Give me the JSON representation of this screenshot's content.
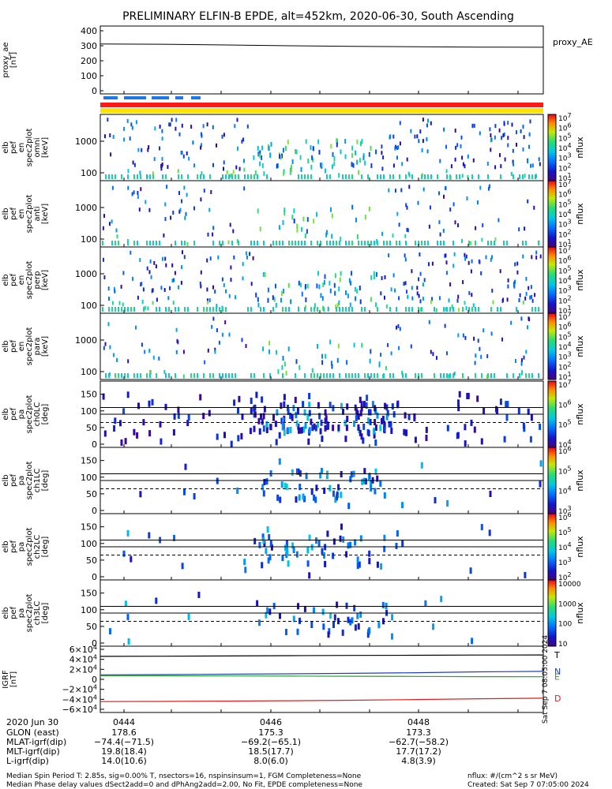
{
  "title": "PRELIMINARY ELFIN-B EPDE, alt=452km, 2020-06-30, South Ascending",
  "proxy_panel": {
    "ylabel_lines": [
      "proxy_ae",
      "[nT]"
    ],
    "yticks": [
      "400",
      "300",
      "200",
      "100",
      "0"
    ],
    "legend": "proxy_AE"
  },
  "spectra_panels": [
    {
      "ylabel_lines": [
        "elb",
        "pef",
        "en",
        "spec2plot",
        "omni",
        "[keV]"
      ],
      "yticks": [
        "1000",
        "100"
      ],
      "zticks": [
        "10^7",
        "10^6",
        "10^5",
        "10^4",
        "10^3",
        "10^2",
        "10^1"
      ],
      "zunit": "nflux"
    },
    {
      "ylabel_lines": [
        "elb",
        "pef",
        "en",
        "spec2plot",
        "anti",
        "[keV]"
      ],
      "yticks": [
        "1000",
        "100"
      ],
      "zticks": [
        "10^7",
        "10^6",
        "10^5",
        "10^4",
        "10^3",
        "10^2",
        "10^1"
      ],
      "zunit": "nflux"
    },
    {
      "ylabel_lines": [
        "elb",
        "pef",
        "en",
        "spec2plot",
        "perp",
        "[keV]"
      ],
      "yticks": [
        "1000",
        "100"
      ],
      "zticks": [
        "10^7",
        "10^6",
        "10^5",
        "10^4",
        "10^3",
        "10^2",
        "10^1"
      ],
      "zunit": "nflux"
    },
    {
      "ylabel_lines": [
        "elb",
        "pef",
        "en",
        "spec2plot",
        "para",
        "[keV]"
      ],
      "yticks": [
        "1000",
        "100"
      ],
      "zticks": [
        "10^7",
        "10^6",
        "10^5",
        "10^4",
        "10^3",
        "10^2",
        "10^1"
      ],
      "zunit": "nflux"
    }
  ],
  "pitch_panels": [
    {
      "ylabel_lines": [
        "elb",
        "pef",
        "pa",
        "spec2plot",
        "ch0LC",
        "[deg]"
      ],
      "yticks": [
        "150",
        "100",
        "50",
        "0"
      ],
      "zticks": [
        "10^7",
        "10^6",
        "10^5",
        "10^4"
      ],
      "zunit": "nflux"
    },
    {
      "ylabel_lines": [
        "elb",
        "pef",
        "pa",
        "spec2plot",
        "ch1LC",
        "[deg]"
      ],
      "yticks": [
        "150",
        "100",
        "50",
        "0"
      ],
      "zticks": [
        "10^6",
        "10^5",
        "10^4",
        "10^3"
      ],
      "zunit": "nflux"
    },
    {
      "ylabel_lines": [
        "elb",
        "pef",
        "pa",
        "spec2plot",
        "ch2LC",
        "[deg]"
      ],
      "yticks": [
        "150",
        "100",
        "50",
        "0"
      ],
      "zticks": [
        "10^6",
        "10^5",
        "10^4",
        "10^3",
        "10^2"
      ],
      "zunit": "nflux"
    },
    {
      "ylabel_lines": [
        "elb",
        "pef",
        "pa",
        "spec2plot",
        "ch3LC",
        "[deg]"
      ],
      "yticks": [
        "150",
        "100",
        "50",
        "0"
      ],
      "zticks": [
        "10000",
        "1000",
        "100",
        "10"
      ],
      "zunit": "nflux"
    }
  ],
  "igrf_panel": {
    "ylabel_lines": [
      "IGRF",
      "[nT]"
    ],
    "yticks": [
      "6×10^4",
      "4×10^4",
      "2×10^4",
      "0",
      "−2×10^4",
      "−4×10^4",
      "−6×10^4"
    ],
    "components": [
      {
        "name": "T",
        "color": "#000000"
      },
      {
        "name": "N",
        "color": "#1f3fbf"
      },
      {
        "name": "E",
        "color": "#2ca02c"
      },
      {
        "name": "D",
        "color": "#e02020"
      }
    ],
    "side_text": "Sat Sep  7 08:05:00 2024"
  },
  "colors": {
    "epd_blue": "#1f78e8",
    "bar_red": "#ff1a1a",
    "bar_yellow": "#ffe100"
  },
  "footer": {
    "date": "2020 Jun 30",
    "row_labels": [
      "GLON (east)",
      "MLAT-igrf(dip)",
      "MLT-igrf(dip)",
      "L-igrf(dip)"
    ],
    "times": [
      "0444",
      "0446",
      "0448"
    ],
    "columns": [
      [
        "178.6",
        "−74.4(−71.5)",
        "19.8(18.4)",
        "14.0(10.6)"
      ],
      [
        "175.3",
        "−69.2(−65.1)",
        "18.5(17.7)",
        "8.0(6.0)"
      ],
      [
        "173.3",
        "−62.7(−58.2)",
        "17.7(17.2)",
        "4.8(3.9)"
      ]
    ],
    "note1": "Median Spin Period T: 2.85s, sig=0.00% T, nsectors=16, nspinsinsum=1, FGM Completeness=None",
    "note2": "Median Phase delay values dSect2add=0 and dPhAng2add=2.00, No Fit, EPDE completeness=None",
    "unit_note": "nflux: #/(cm^2 s sr MeV)",
    "created": "Created: Sat Sep  7 07:05:00 2024"
  },
  "chart_data": [
    {
      "type": "line",
      "title": "PRELIMINARY ELFIN-B EPDE, alt=452km, 2020-06-30, South Ascending",
      "ylabel": "proxy_ae [nT]",
      "ylim": [
        0,
        400
      ],
      "x": [
        "0443:40",
        "0444",
        "0445",
        "0446",
        "0447",
        "0448",
        "0449",
        "0449:45"
      ],
      "series": [
        {
          "name": "proxy_AE",
          "values": [
            312,
            310,
            305,
            300,
            296,
            293,
            291,
            290
          ]
        }
      ]
    },
    {
      "type": "line",
      "ylabel": "IGRF [nT]",
      "ylim": [
        -60000,
        60000
      ],
      "x": [
        "0443:40",
        "0444",
        "0445",
        "0446",
        "0447",
        "0448",
        "0449",
        "0449:45"
      ],
      "series": [
        {
          "name": "T",
          "values": [
            46000,
            46300,
            46800,
            47300,
            47800,
            48200,
            48600,
            48800
          ]
        },
        {
          "name": "N",
          "values": [
            9000,
            9500,
            10200,
            11000,
            12000,
            13300,
            15000,
            16000
          ]
        },
        {
          "name": "E",
          "values": [
            7200,
            7100,
            6800,
            6500,
            6200,
            5800,
            5400,
            5200
          ]
        },
        {
          "name": "D",
          "values": [
            -44500,
            -44200,
            -43600,
            -42800,
            -41800,
            -40500,
            -38800,
            -37800
          ]
        }
      ]
    }
  ]
}
